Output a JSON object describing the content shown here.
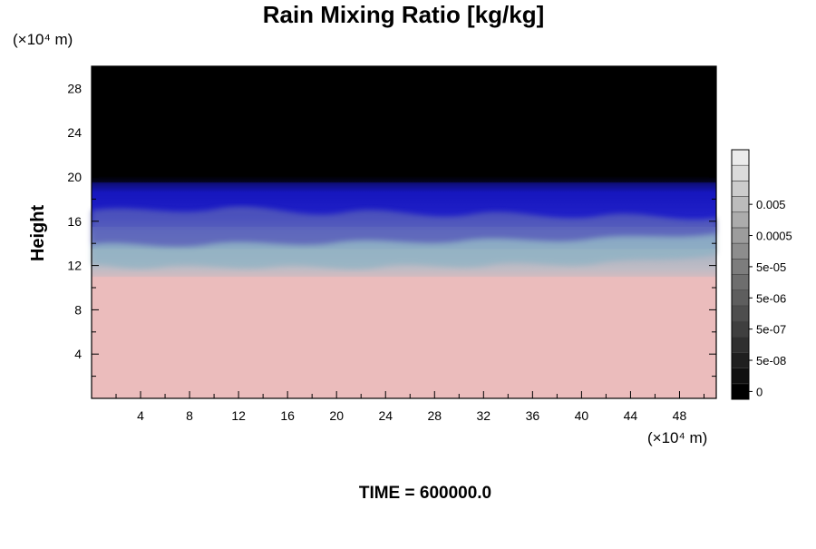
{
  "chart_data": {
    "type": "heatmap",
    "title": "Rain Mixing Ratio [kg/kg]",
    "ylabel": "Height",
    "y_unit": "(×10⁴ m)",
    "x_unit": "(×10⁴ m)",
    "xlim": [
      0,
      51
    ],
    "ylim": [
      0,
      30
    ],
    "x_ticks": [
      4,
      8,
      12,
      16,
      20,
      24,
      28,
      32,
      36,
      40,
      44,
      48
    ],
    "y_ticks": [
      4,
      8,
      12,
      16,
      20,
      24,
      28
    ],
    "colorbar": {
      "labels": [
        "0.005",
        "0.0005",
        "5e-05",
        "5e-06",
        "5e-07",
        "5e-08",
        "0"
      ],
      "levels": 16
    },
    "regions": [
      {
        "from_height": 0,
        "to_height": 11,
        "color": "#ebbcbc"
      },
      {
        "from_height": 11,
        "to_height": 13.5,
        "color": "#b7b7c4"
      },
      {
        "from_height": 13.5,
        "to_height": 15.5,
        "color": "#6d7bc8"
      },
      {
        "from_height": 15.5,
        "to_height": 19.5,
        "color": "#1818c8"
      },
      {
        "from_height": 19.5,
        "to_height": 30,
        "color": "#000000"
      }
    ],
    "time_label": "TIME = 600000.0"
  }
}
